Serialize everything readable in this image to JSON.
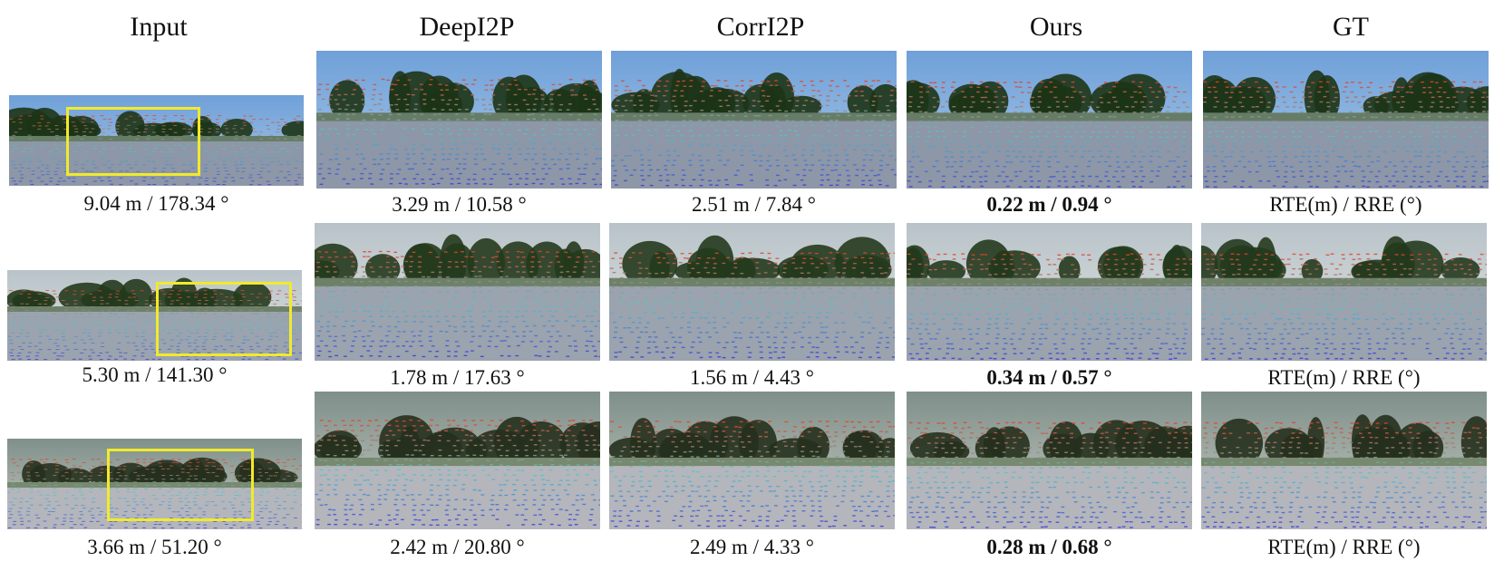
{
  "headers": {
    "input": "Input",
    "deepi2p": "DeepI2P",
    "corri2p": "CorrI2P",
    "ours": "Ours",
    "gt": "GT"
  },
  "rows": [
    {
      "input_caption": "9.04 m / 178.34 °",
      "deepi2p_caption": "3.29 m / 10.58 °",
      "corri2p_caption": "2.51 m / 7.84 °",
      "ours_caption": "0.22 m / 0.94 °",
      "gt_caption": "RTE(m) / RRE (°)"
    },
    {
      "input_caption": "5.30 m / 141.30 °",
      "deepi2p_caption": "1.78 m / 17.63 °",
      "corri2p_caption": "1.56 m / 4.43 °",
      "ours_caption": "0.34 m / 0.57 °",
      "gt_caption": "RTE(m) / RRE (°)"
    },
    {
      "input_caption": "3.66 m / 51.20 °",
      "deepi2p_caption": "2.42 m / 20.80 °",
      "corri2p_caption": "2.49 m / 4.33 °",
      "ours_caption": "0.28 m / 0.68 °",
      "gt_caption": "RTE(m) / RRE (°)"
    }
  ],
  "colors": {
    "bbox": "#f1ea2c",
    "lidar_near": "#3b3bd8",
    "lidar_mid": "#56c8c8",
    "lidar_far": "#e0452a"
  }
}
